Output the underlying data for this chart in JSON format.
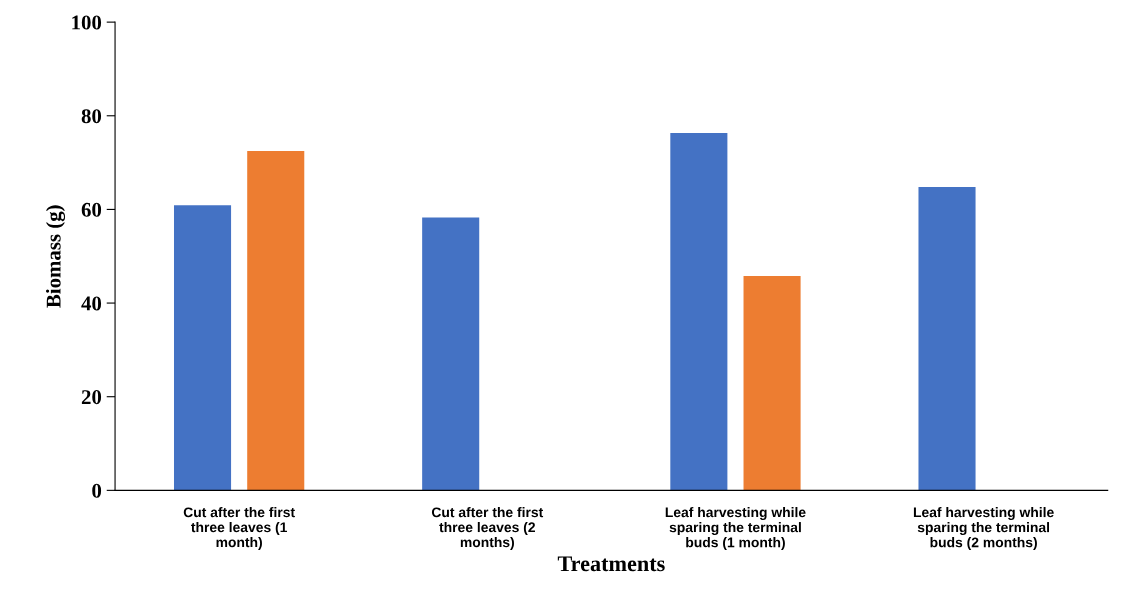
{
  "chart_data": {
    "type": "bar",
    "xlabel": "Treatments",
    "ylabel": "Biomass (g)",
    "categories": [
      "Cut after the first\nthree leaves (1\nmonth)",
      "Cut after the first\nthree leaves (2\nmonths)",
      "Leaf harvesting while\nsparing the terminal\nbuds (1 month)",
      "Leaf harvesting while\nsparing the terminal\nbuds (2 months)"
    ],
    "series": [
      {
        "color": "#4472c4",
        "values": [
          60.9,
          58.3,
          76.3,
          64.8
        ]
      },
      {
        "color": "#ed7d31",
        "values": [
          72.5,
          null,
          45.8,
          null
        ]
      }
    ],
    "ylim": [
      0,
      100
    ],
    "yticks": [
      0,
      20,
      40,
      60,
      80,
      100
    ],
    "grid": false
  }
}
